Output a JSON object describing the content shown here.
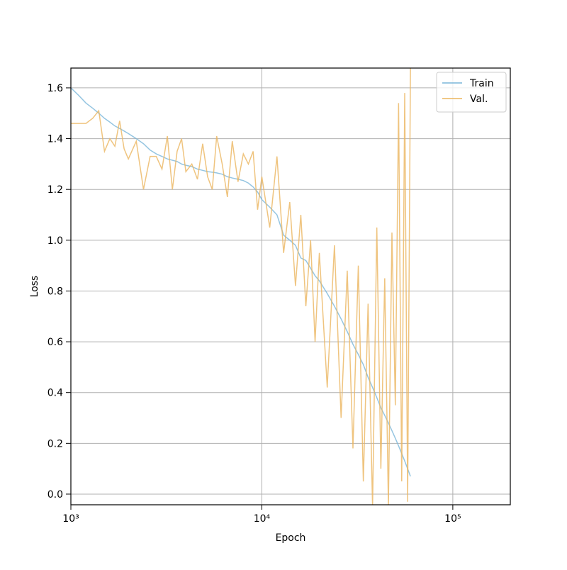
{
  "chart_data": {
    "type": "line",
    "x_label": "Epoch",
    "y_label": "Loss",
    "xscale": "log",
    "grid": true,
    "legend": "upper right",
    "xlim": [
      1000,
      200000
    ],
    "ylim": [
      -0.042,
      1.678
    ],
    "xticks": [
      {
        "value": 1000,
        "label": "10³"
      },
      {
        "value": 10000,
        "label": "10⁴"
      },
      {
        "value": 100000,
        "label": "10⁵"
      }
    ],
    "yticks": [
      {
        "value": 0,
        "label": "0.0"
      },
      0.2,
      0.4,
      0.6,
      0.8,
      {
        "value": 1,
        "label": "1.0"
      },
      1.2,
      1.4,
      1.6
    ],
    "x": [
      1000,
      1100,
      1200,
      1300,
      1400,
      1500,
      1600,
      1700,
      1800,
      1900,
      2000,
      2200,
      2400,
      2600,
      2800,
      3000,
      3200,
      3400,
      3600,
      3800,
      4000,
      4300,
      4600,
      4900,
      5200,
      5500,
      5800,
      6200,
      6600,
      7000,
      7500,
      8000,
      8500,
      9000,
      9500,
      10000,
      11000,
      12000,
      13000,
      14000,
      15000,
      16000,
      17000,
      18000,
      19000,
      20000,
      22000,
      24000,
      26000,
      28000,
      30000,
      32000,
      34000,
      36000,
      38000,
      40000,
      42000,
      44000,
      46000,
      48000,
      50000,
      52000,
      54000,
      56000,
      58000,
      60000
    ],
    "series": [
      {
        "name": "Train",
        "color": "#7ab6d9",
        "values": [
          1.6,
          1.57,
          1.54,
          1.52,
          1.5,
          1.48,
          1.465,
          1.45,
          1.44,
          1.43,
          1.42,
          1.4,
          1.38,
          1.355,
          1.34,
          1.33,
          1.32,
          1.315,
          1.31,
          1.3,
          1.295,
          1.29,
          1.28,
          1.275,
          1.27,
          1.268,
          1.265,
          1.26,
          1.25,
          1.245,
          1.24,
          1.235,
          1.225,
          1.21,
          1.19,
          1.16,
          1.13,
          1.1,
          1.02,
          1.0,
          0.98,
          0.93,
          0.92,
          0.89,
          0.86,
          0.84,
          0.79,
          0.74,
          0.69,
          0.64,
          0.59,
          0.55,
          0.51,
          0.46,
          0.42,
          0.38,
          0.34,
          0.31,
          0.28,
          0.25,
          0.22,
          0.19,
          0.16,
          0.13,
          0.1,
          0.07
        ]
      },
      {
        "name": "Val.",
        "color": "#ebb55f",
        "values": [
          1.46,
          1.46,
          1.46,
          1.48,
          1.51,
          1.35,
          1.4,
          1.37,
          1.47,
          1.36,
          1.32,
          1.39,
          1.2,
          1.33,
          1.33,
          1.28,
          1.41,
          1.2,
          1.35,
          1.4,
          1.27,
          1.3,
          1.24,
          1.38,
          1.25,
          1.2,
          1.41,
          1.3,
          1.17,
          1.39,
          1.23,
          1.34,
          1.3,
          1.35,
          1.12,
          1.25,
          1.05,
          1.33,
          0.95,
          1.15,
          0.82,
          1.1,
          0.74,
          1.0,
          0.6,
          0.95,
          0.42,
          0.98,
          0.3,
          0.88,
          0.18,
          0.9,
          0.05,
          0.75,
          -0.05,
          1.05,
          0.1,
          0.85,
          -0.05,
          1.03,
          0.35,
          1.54,
          0.05,
          1.58,
          -0.03,
          1.68
        ]
      }
    ]
  }
}
